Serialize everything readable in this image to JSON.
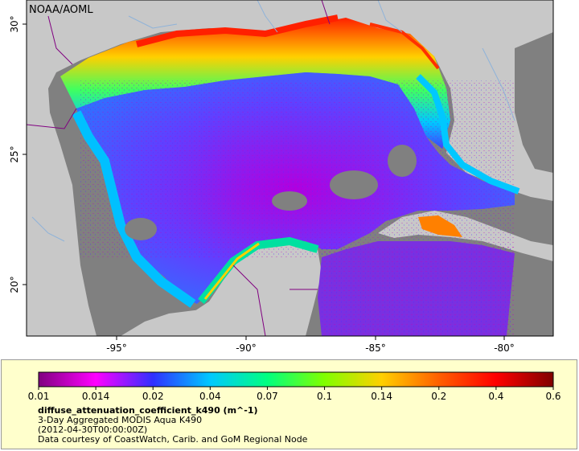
{
  "credit": "NOAA/AOML",
  "map": {
    "lon_ticks": [
      "-95°",
      "-90°",
      "-85°",
      "-80°"
    ],
    "lat_ticks": [
      "30°",
      "25°",
      "20°"
    ],
    "colors": {
      "land": "#c8c8c8",
      "no_data": "#808080",
      "border": "#800080",
      "river": "#8fb3d9"
    }
  },
  "legend": {
    "tick_labels": [
      "0.01",
      "0.014",
      "0.02",
      "0.04",
      "0.07",
      "0.1",
      "0.14",
      "0.2",
      "0.4",
      "0.6"
    ],
    "variable": "diffuse_attenuation_coefficient_k490 (m^-1)",
    "description": "3-Day Aggregated MODIS Aqua K490",
    "time": "(2012-04-30T00:00:00Z)",
    "source": "Data courtesy of CoastWatch, Carib. and GoM Regional Node",
    "colors": [
      "#800080",
      "#ff00ff",
      "#3030ff",
      "#00c8ff",
      "#00ff80",
      "#80ff00",
      "#ffd000",
      "#ff6000",
      "#ff0000",
      "#800000"
    ]
  }
}
